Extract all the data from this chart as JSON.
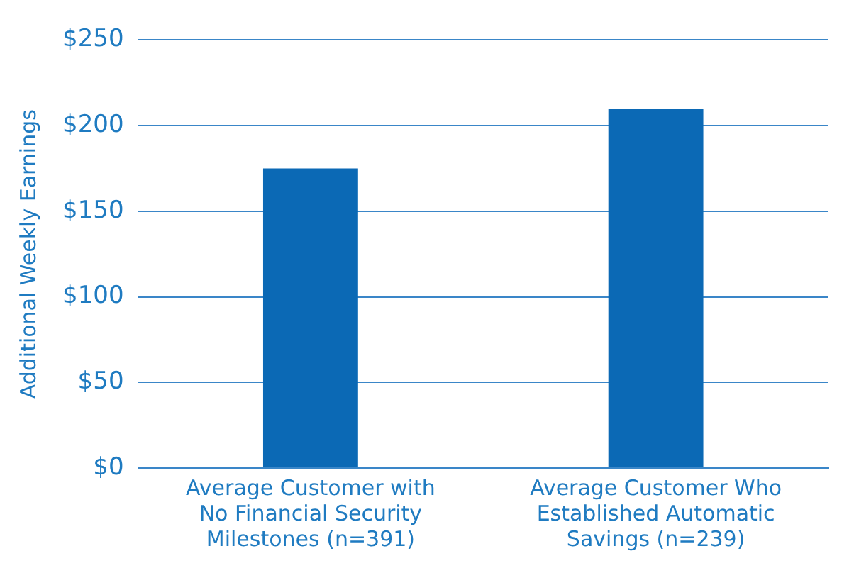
{
  "chart_data": {
    "type": "bar",
    "ylabel": "Additional Weekly Earnings",
    "categories": [
      "Average Customer with No Financial Security Milestones (n=391)",
      "Average Customer Who Established Automatic Savings (n=239)"
    ],
    "values": [
      175,
      210
    ],
    "color": "#0b69b5",
    "ylim": [
      0,
      250
    ],
    "yticks": [
      {
        "value": 0,
        "label": "$0"
      },
      {
        "value": 50,
        "label": "$50"
      },
      {
        "value": 100,
        "label": "$100"
      },
      {
        "value": 150,
        "label": "$150"
      },
      {
        "value": 200,
        "label": "$200"
      },
      {
        "value": 250,
        "label": "$250"
      }
    ],
    "grid": "y"
  }
}
